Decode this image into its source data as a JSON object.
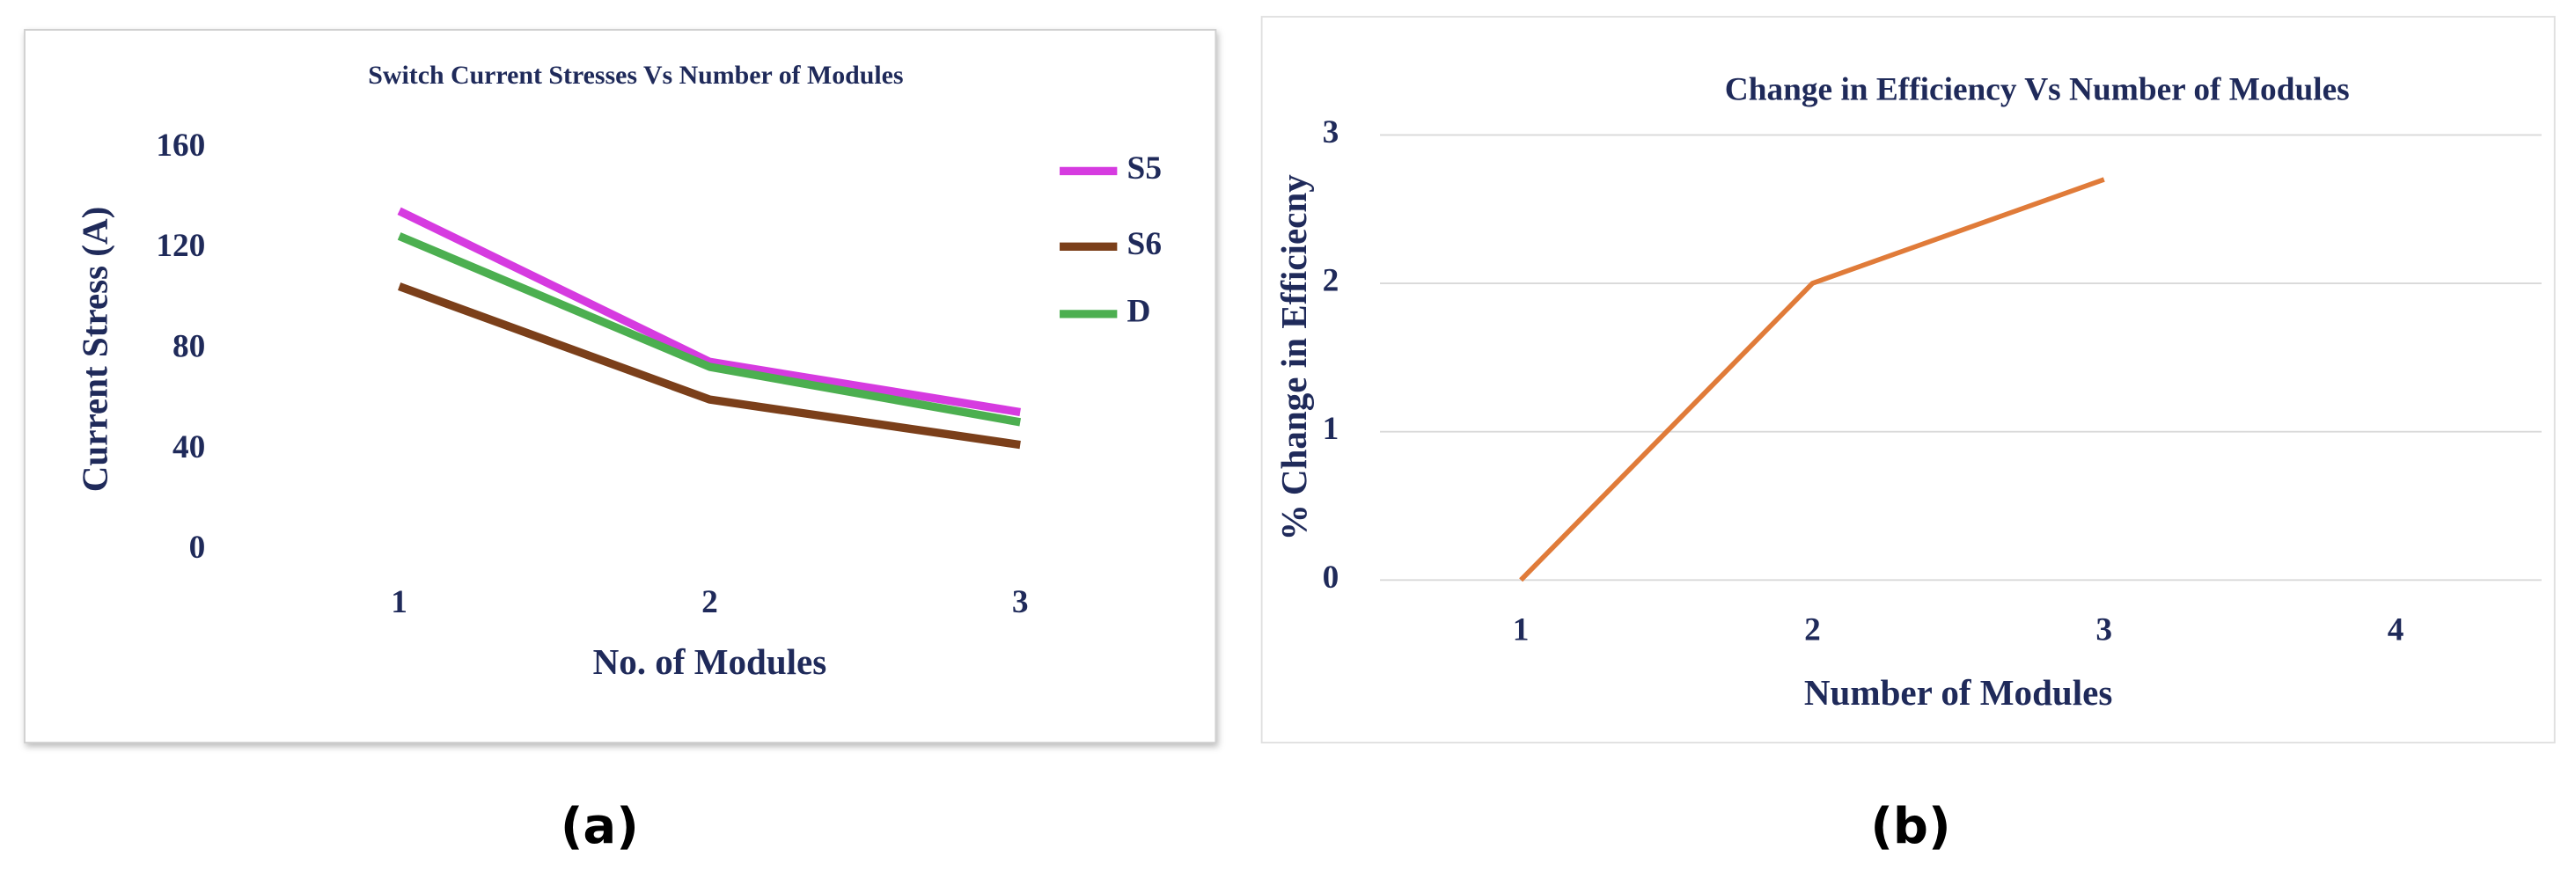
{
  "chart_data": [
    {
      "type": "line",
      "title": "Switch Current Stresses Vs Number of Modules",
      "caption": "(a)",
      "x_label": "No. of Modules",
      "y_label": "Current Stress (A)",
      "categories": [
        "1",
        "2",
        "3"
      ],
      "series": [
        {
          "name": "S5",
          "color": "#d63be0",
          "values": [
            135,
            75,
            55
          ]
        },
        {
          "name": "S6",
          "color": "#7b3f1a",
          "values": [
            105,
            60,
            42
          ]
        },
        {
          "name": "D",
          "color": "#4caf50",
          "values": [
            125,
            73,
            51
          ]
        }
      ],
      "ylim": [
        0,
        160
      ],
      "yticks": [
        0,
        40,
        80,
        120,
        160
      ],
      "grid": false,
      "legend": "right"
    },
    {
      "type": "line",
      "title": "Change in Efficiency Vs Number of Modules",
      "caption": "(b)",
      "x_label": "Number of Modules",
      "y_label": "% Change in Efficiecny",
      "categories": [
        "1",
        "2",
        "3",
        "4"
      ],
      "values": [
        0,
        2,
        2.7,
        null
      ],
      "color": "#e07b39",
      "ylim": [
        0,
        3
      ],
      "yticks": [
        0,
        1,
        2,
        3
      ],
      "grid": true
    }
  ]
}
